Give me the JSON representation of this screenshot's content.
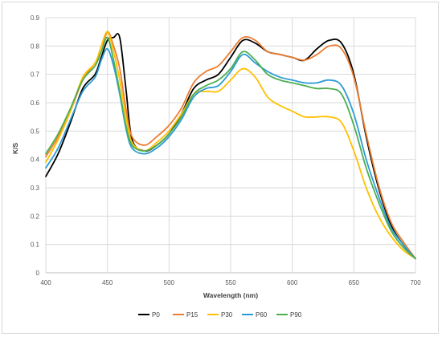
{
  "chart_data": {
    "type": "line",
    "title": "",
    "xlabel": "Wavelength (nm)",
    "ylabel": "K/S",
    "xlim": [
      400,
      700
    ],
    "ylim": [
      0,
      0.9
    ],
    "xticks": [
      "400",
      "450",
      "500",
      "550",
      "600",
      "650",
      "700"
    ],
    "yticks": [
      "0",
      "0.1",
      "0.2",
      "0.3",
      "0.4",
      "0.5",
      "0.6",
      "0.7",
      "0.8",
      "0.9"
    ],
    "grid": true,
    "legend_position": "bottom",
    "series": [
      {
        "name": "P0",
        "color": "#000000",
        "x": [
          400,
          410,
          420,
          430,
          440,
          445,
          450,
          455,
          460,
          465,
          470,
          480,
          490,
          500,
          510,
          520,
          530,
          540,
          550,
          560,
          570,
          580,
          590,
          600,
          610,
          620,
          630,
          640,
          650,
          660,
          670,
          680,
          690,
          700
        ],
        "y": [
          0.34,
          0.42,
          0.53,
          0.65,
          0.7,
          0.76,
          0.82,
          0.83,
          0.83,
          0.65,
          0.47,
          0.43,
          0.45,
          0.49,
          0.56,
          0.65,
          0.68,
          0.7,
          0.76,
          0.82,
          0.81,
          0.78,
          0.77,
          0.76,
          0.75,
          0.79,
          0.82,
          0.81,
          0.7,
          0.48,
          0.3,
          0.17,
          0.1,
          0.05
        ]
      },
      {
        "name": "P15",
        "color": "#ed7d31",
        "x": [
          400,
          410,
          420,
          430,
          440,
          445,
          450,
          455,
          460,
          465,
          470,
          480,
          490,
          500,
          510,
          520,
          530,
          540,
          550,
          560,
          570,
          580,
          590,
          600,
          610,
          620,
          630,
          640,
          650,
          660,
          670,
          680,
          690,
          700
        ],
        "y": [
          0.41,
          0.48,
          0.57,
          0.68,
          0.74,
          0.78,
          0.85,
          0.8,
          0.72,
          0.58,
          0.48,
          0.45,
          0.48,
          0.52,
          0.58,
          0.67,
          0.71,
          0.73,
          0.78,
          0.83,
          0.82,
          0.78,
          0.77,
          0.76,
          0.75,
          0.77,
          0.8,
          0.79,
          0.69,
          0.49,
          0.31,
          0.18,
          0.11,
          0.05
        ]
      },
      {
        "name": "P30",
        "color": "#ffc000",
        "x": [
          400,
          410,
          420,
          430,
          440,
          445,
          450,
          455,
          460,
          465,
          470,
          480,
          490,
          500,
          510,
          520,
          530,
          540,
          550,
          560,
          570,
          580,
          590,
          600,
          610,
          620,
          630,
          640,
          650,
          660,
          670,
          680,
          690,
          700
        ],
        "y": [
          0.39,
          0.47,
          0.57,
          0.69,
          0.74,
          0.8,
          0.85,
          0.78,
          0.68,
          0.55,
          0.46,
          0.43,
          0.46,
          0.5,
          0.56,
          0.63,
          0.64,
          0.64,
          0.68,
          0.72,
          0.69,
          0.62,
          0.59,
          0.57,
          0.55,
          0.55,
          0.55,
          0.53,
          0.43,
          0.3,
          0.2,
          0.13,
          0.08,
          0.05
        ]
      },
      {
        "name": "P60",
        "color": "#2e9bd6",
        "x": [
          400,
          410,
          420,
          430,
          440,
          445,
          450,
          455,
          460,
          465,
          470,
          480,
          490,
          500,
          510,
          520,
          530,
          540,
          550,
          560,
          570,
          580,
          590,
          600,
          610,
          620,
          630,
          640,
          650,
          660,
          670,
          680,
          690,
          700
        ],
        "y": [
          0.37,
          0.44,
          0.54,
          0.64,
          0.69,
          0.75,
          0.79,
          0.73,
          0.63,
          0.51,
          0.44,
          0.42,
          0.44,
          0.48,
          0.54,
          0.62,
          0.65,
          0.66,
          0.71,
          0.77,
          0.74,
          0.71,
          0.69,
          0.68,
          0.67,
          0.67,
          0.68,
          0.66,
          0.56,
          0.4,
          0.27,
          0.16,
          0.1,
          0.05
        ]
      },
      {
        "name": "P90",
        "color": "#4caf50",
        "x": [
          400,
          410,
          420,
          430,
          440,
          445,
          450,
          455,
          460,
          465,
          470,
          480,
          490,
          500,
          510,
          520,
          530,
          540,
          550,
          560,
          570,
          580,
          590,
          600,
          610,
          620,
          630,
          640,
          650,
          660,
          670,
          680,
          690,
          700
        ],
        "y": [
          0.42,
          0.49,
          0.58,
          0.68,
          0.73,
          0.78,
          0.83,
          0.75,
          0.64,
          0.52,
          0.45,
          0.43,
          0.45,
          0.49,
          0.55,
          0.63,
          0.66,
          0.68,
          0.72,
          0.78,
          0.75,
          0.7,
          0.68,
          0.67,
          0.66,
          0.65,
          0.65,
          0.63,
          0.52,
          0.37,
          0.25,
          0.15,
          0.09,
          0.05
        ]
      }
    ]
  }
}
